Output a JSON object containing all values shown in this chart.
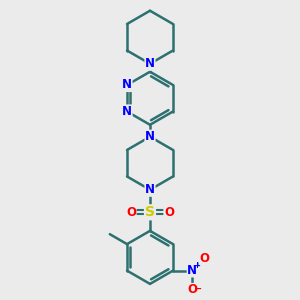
{
  "background_color": "#ebebeb",
  "bond_color": "#2d7070",
  "N_color": "#0000ff",
  "O_color": "#ff0000",
  "S_color": "#cccc00",
  "line_width": 1.8,
  "figsize": [
    3.0,
    3.0
  ],
  "dpi": 100,
  "xlim": [
    -3.5,
    3.5
  ],
  "ylim": [
    -5.5,
    5.5
  ]
}
